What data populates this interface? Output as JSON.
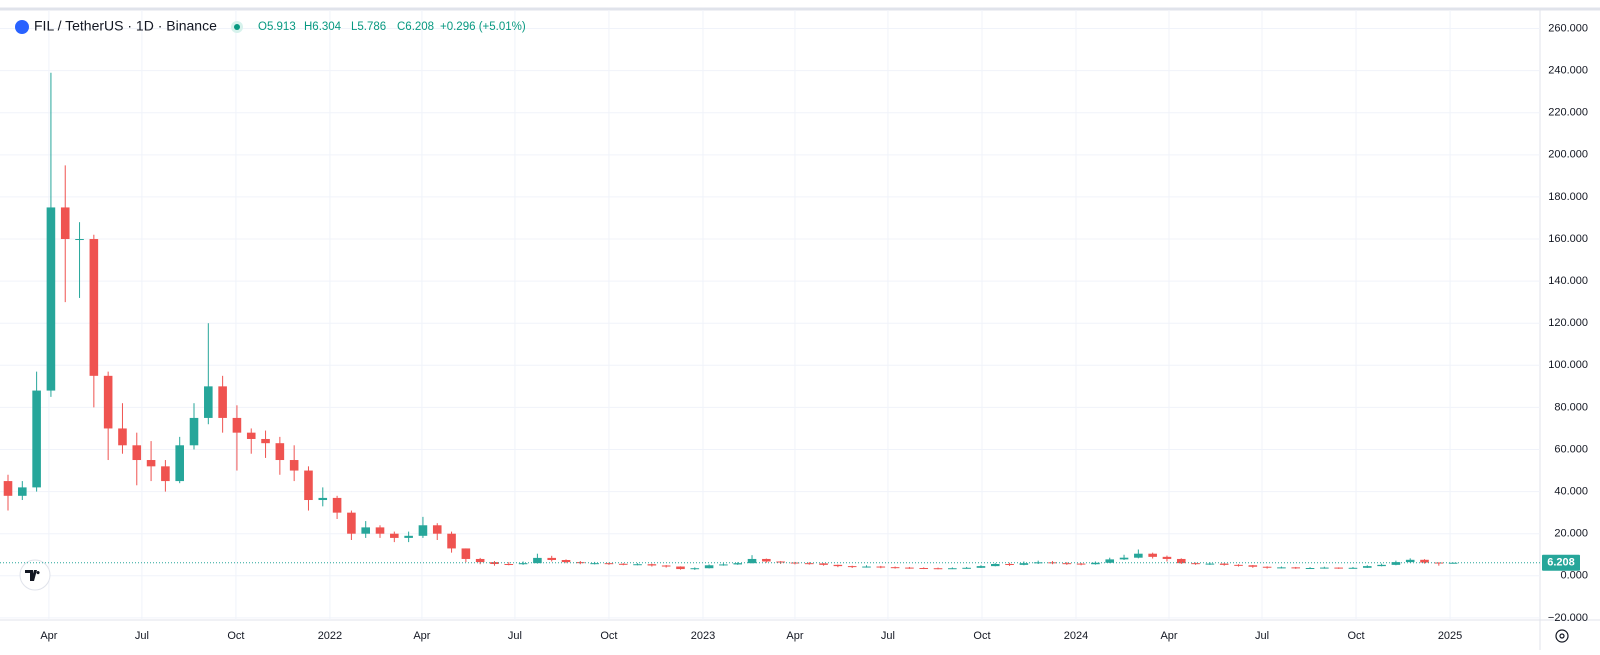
{
  "chart_data": {
    "type": "candlestick",
    "title": "FIL / TetherUS · 1D · Binance",
    "header": {
      "open": "O5.913",
      "high": "H6.304",
      "low": "L5.786",
      "close": "C6.208",
      "change": "+0.296 (+5.01%)"
    },
    "up_color": "#26a69a",
    "down_color": "#ef5350",
    "grid": true,
    "x": [
      50,
      64,
      78,
      92,
      106,
      120,
      134,
      148,
      162,
      176,
      190,
      204,
      218,
      232,
      246,
      260,
      274,
      288,
      302,
      316,
      330,
      344,
      358,
      372,
      386,
      400,
      414,
      428,
      442,
      456,
      470,
      484,
      498,
      512,
      526,
      540,
      554,
      568,
      582,
      596,
      610,
      624,
      638,
      652,
      666,
      680,
      694,
      708,
      722,
      736,
      750,
      764,
      778,
      792,
      806,
      820,
      834,
      848,
      862,
      876,
      890,
      904,
      918,
      932,
      946,
      960,
      974,
      988,
      1002,
      1016,
      1030,
      1044,
      1058,
      1072,
      1086,
      1100,
      1114,
      1128,
      1142,
      1156,
      1170,
      1184,
      1198,
      1212,
      1226,
      1240,
      1254,
      1268,
      1282,
      1296,
      1310,
      1324,
      1338,
      1352,
      1366,
      1380,
      1394,
      1408,
      1422,
      1436,
      1450,
      1464
    ],
    "open": [
      45,
      38,
      42,
      88,
      175,
      160,
      160,
      95,
      70,
      62,
      55,
      52,
      45,
      62,
      75,
      90,
      75,
      68,
      65,
      63,
      55,
      50,
      36,
      37,
      30,
      20,
      23,
      20,
      18,
      19,
      24,
      20,
      13,
      8,
      6.5,
      5.6,
      5.5,
      6,
      8.5,
      7.5,
      6.5,
      6,
      6,
      5.7,
      5.4,
      5.5,
      4.9,
      4.4,
      3.2,
      3.6,
      5,
      5.4,
      6,
      8,
      6.8,
      6.3,
      6,
      5.9,
      5.2,
      4.6,
      4.2,
      4.4,
      4.1,
      3.9,
      3.7,
      3.6,
      3.5,
      3.6,
      3.8,
      4.6,
      5.6,
      5.2,
      6,
      6.4,
      6,
      5.8,
      5.5,
      6.2,
      7.8,
      8.6,
      10.5,
      9,
      8,
      6,
      5.7,
      5.8,
      5.2,
      5,
      4.3,
      3.9,
      4,
      3.6,
      3.7,
      3.9,
      3.6,
      3.8,
      4.6,
      5.2,
      6.5,
      7.6,
      6.3,
      5.913
    ],
    "high": [
      48,
      45,
      97,
      239,
      195,
      168,
      162,
      97,
      82,
      68,
      64,
      55,
      66,
      82,
      120,
      95,
      81,
      70,
      69,
      66,
      62,
      52,
      42,
      38,
      31,
      26,
      24,
      21,
      21,
      28,
      25,
      21,
      13,
      8.5,
      7,
      6.5,
      6.8,
      10.5,
      9.5,
      7.8,
      7,
      6.6,
      6.3,
      6,
      6,
      5.8,
      5.1,
      4.5,
      4,
      5.4,
      6,
      6.4,
      9.8,
      8.2,
      7,
      6.6,
      6.5,
      6,
      5.3,
      4.8,
      5,
      4.7,
      4.4,
      4.2,
      4,
      3.9,
      4,
      4.2,
      5,
      6,
      6.2,
      6.8,
      7.2,
      7,
      6.5,
      6.1,
      6.8,
      8.6,
      10,
      12.5,
      11,
      9.6,
      8.3,
      6.3,
      6.4,
      6,
      5.5,
      5.1,
      4.5,
      4.4,
      4.2,
      4.1,
      4.3,
      4,
      4.2,
      5,
      5.8,
      7.2,
      8.3,
      7.9,
      6.4,
      6.304
    ],
    "low": [
      31,
      36,
      40,
      85,
      130,
      132,
      80,
      55,
      58,
      43,
      45,
      40,
      44,
      60,
      72,
      68,
      50,
      58,
      56,
      48,
      45,
      31,
      33,
      27,
      17,
      18,
      18,
      16,
      16,
      18,
      17,
      11,
      6.5,
      5.5,
      4.8,
      5,
      5.2,
      5.8,
      6.8,
      6,
      5.5,
      5.4,
      5.2,
      5,
      5,
      4.4,
      3.9,
      2.9,
      2.8,
      3.5,
      4.8,
      5.2,
      5.9,
      6.2,
      5.6,
      5.4,
      5.3,
      4.8,
      4.1,
      3.7,
      3.9,
      3.6,
      3.4,
      3.3,
      3.2,
      3.1,
      3.2,
      3.4,
      3.7,
      4.5,
      4.7,
      5,
      5.6,
      5.5,
      5.2,
      5,
      5.3,
      6,
      7.5,
      8.3,
      8.2,
      6.8,
      5.6,
      5.2,
      5.2,
      4.8,
      4.4,
      3.8,
      3.4,
      3.5,
      3.3,
      3.3,
      3.4,
      3.3,
      3.4,
      3.7,
      4.5,
      5,
      6.3,
      5.8,
      4.8,
      5.786
    ],
    "close": [
      38,
      42,
      88,
      175,
      160,
      160,
      95,
      70,
      62,
      55,
      52,
      45,
      62,
      75,
      90,
      75,
      68,
      65,
      63,
      55,
      50,
      36,
      37,
      30,
      20,
      23,
      20,
      18,
      19,
      24,
      20,
      13,
      8,
      6.5,
      5.6,
      5.5,
      6,
      8.5,
      7.5,
      6.5,
      6,
      6,
      5.7,
      5.4,
      5.5,
      4.9,
      4.4,
      3.2,
      3.6,
      5,
      5.4,
      6,
      8,
      6.8,
      6.3,
      6,
      5.9,
      5.2,
      4.6,
      4.2,
      4.4,
      4.1,
      3.9,
      3.7,
      3.6,
      3.5,
      3.6,
      3.8,
      4.6,
      5.6,
      5.2,
      6,
      6.4,
      6,
      5.8,
      5.5,
      6.2,
      7.8,
      8.6,
      10.5,
      9,
      8,
      6,
      5.7,
      5.8,
      5.2,
      5,
      4.3,
      3.9,
      4,
      3.6,
      3.7,
      3.9,
      3.6,
      3.8,
      4.6,
      5.2,
      6.5,
      7.6,
      6.3,
      5.9,
      6.208
    ],
    "xlim": [
      50,
      1549
    ],
    "xticks": [
      {
        "value": 90,
        "label": "Apr"
      },
      {
        "value": 181,
        "label": "Jul"
      },
      {
        "value": 273,
        "label": "Oct"
      },
      {
        "value": 365,
        "label": "2022"
      },
      {
        "value": 455,
        "label": "Apr"
      },
      {
        "value": 546,
        "label": "Jul"
      },
      {
        "value": 638,
        "label": "Oct"
      },
      {
        "value": 730,
        "label": "2023"
      },
      {
        "value": 820,
        "label": "Apr"
      },
      {
        "value": 911,
        "label": "Jul"
      },
      {
        "value": 1003,
        "label": "Oct"
      },
      {
        "value": 1095,
        "label": "2024"
      },
      {
        "value": 1186,
        "label": "Apr"
      },
      {
        "value": 1277,
        "label": "Jul"
      },
      {
        "value": 1369,
        "label": "Oct"
      },
      {
        "value": 1461,
        "label": "2025"
      }
    ],
    "ylim": [
      -21,
      268.8
    ],
    "yticks": [
      {
        "value": -20,
        "label": "−20.000"
      },
      {
        "value": 0,
        "label": "0.000"
      },
      {
        "value": 20,
        "label": "20.000"
      },
      {
        "value": 40,
        "label": "40.000"
      },
      {
        "value": 60,
        "label": "60.000"
      },
      {
        "value": 80,
        "label": "80.000"
      },
      {
        "value": 100,
        "label": "100.000"
      },
      {
        "value": 120,
        "label": "120.000"
      },
      {
        "value": 140,
        "label": "140.000"
      },
      {
        "value": 160,
        "label": "160.000"
      },
      {
        "value": 180,
        "label": "180.000"
      },
      {
        "value": 200,
        "label": "200.000"
      },
      {
        "value": 220,
        "label": "220.000"
      },
      {
        "value": 240,
        "label": "240.000"
      },
      {
        "value": 260,
        "label": "260.000"
      }
    ]
  }
}
